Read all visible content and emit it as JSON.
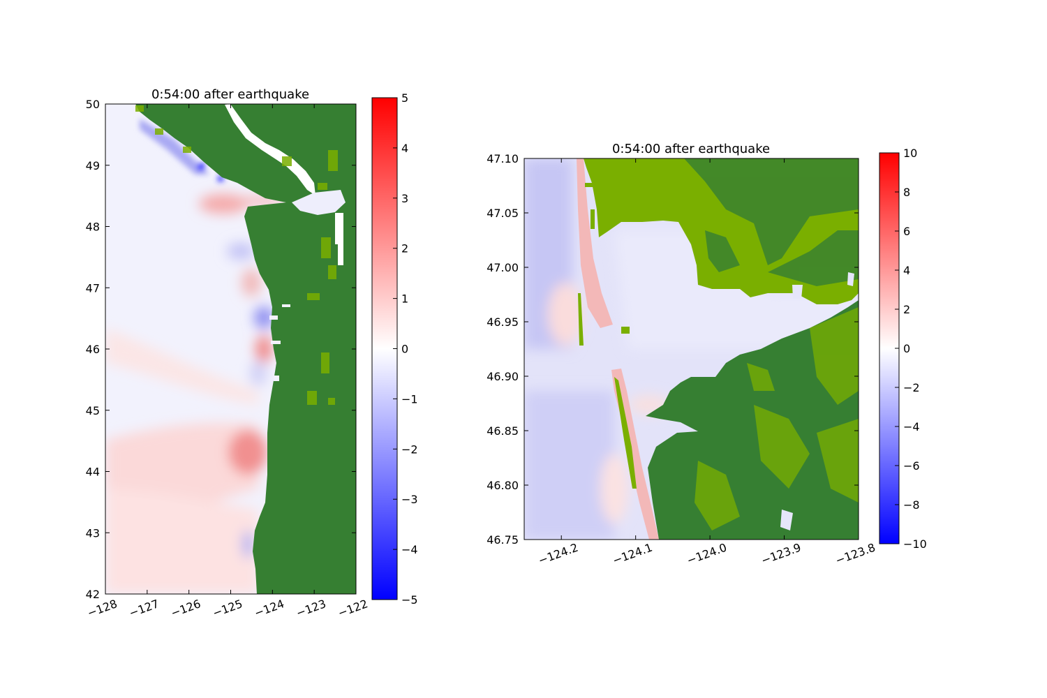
{
  "chart_data": [
    {
      "type": "heatmap",
      "title": "0:54:00 after earthquake",
      "x_ticks": [
        "−128",
        "−127",
        "−126",
        "−125",
        "−124",
        "−123",
        "−122"
      ],
      "x_tick_values": [
        -128,
        -127,
        -126,
        -125,
        -124,
        -123,
        -122
      ],
      "y_ticks": [
        "42",
        "43",
        "44",
        "45",
        "46",
        "47",
        "48",
        "49",
        "50"
      ],
      "y_tick_values": [
        42,
        43,
        44,
        45,
        46,
        47,
        48,
        49,
        50
      ],
      "xlim": [
        -128,
        -122
      ],
      "ylim": [
        42,
        50
      ],
      "colorbar": {
        "range": [
          -5,
          5
        ],
        "ticks": [
          "5",
          "4",
          "3",
          "2",
          "1",
          "0",
          "−1",
          "−2",
          "−3",
          "−4",
          "−5"
        ],
        "colors": [
          "#0000ff",
          "#ffffff",
          "#ff0000"
        ]
      },
      "land_color": "#367f32",
      "coast_lon": [
        [
          50.0,
          -125.1
        ],
        [
          49.5,
          -125.3
        ],
        [
          49.1,
          -124.7
        ],
        [
          48.4,
          -124.4
        ],
        [
          47.8,
          -124.35
        ],
        [
          47.3,
          -124.25
        ],
        [
          46.9,
          -124.1
        ],
        [
          46.3,
          -124.05
        ],
        [
          45.5,
          -124.0
        ],
        [
          44.8,
          -124.05
        ],
        [
          44.0,
          -124.05
        ],
        [
          43.3,
          -124.2
        ],
        [
          42.8,
          -124.4
        ],
        [
          42.0,
          -124.3
        ]
      ],
      "features": [
        {
          "lat": 44.3,
          "lon": -124.6,
          "value": 2.0
        },
        {
          "lat": 48.3,
          "lon": -125.6,
          "value": 1.6
        },
        {
          "lat": 48.95,
          "lon": -124.8,
          "value": -3.8
        },
        {
          "lat": 47.6,
          "lon": -124.7,
          "value": -1.5
        },
        {
          "lat": 46.5,
          "lon": -124.3,
          "value": -2.2
        },
        {
          "lat": 45.9,
          "lon": -124.2,
          "value": 1.5
        },
        {
          "lat": 47.2,
          "lon": -124.6,
          "value": 1.2
        },
        {
          "lat": 43.6,
          "lon": -127.0,
          "value": 0.6
        },
        {
          "lat": 45.2,
          "lon": -125.5,
          "value": 0.5
        },
        {
          "lat": 42.8,
          "lon": -124.5,
          "value": -1.3
        }
      ]
    },
    {
      "type": "heatmap",
      "title": "0:54:00 after earthquake",
      "x_ticks": [
        "−124.2",
        "−124.1",
        "−124.0",
        "−123.9",
        "−123.8"
      ],
      "x_tick_values": [
        -124.2,
        -124.1,
        -124.0,
        -123.9,
        -123.8
      ],
      "y_ticks": [
        "46.75",
        "46.80",
        "46.85",
        "46.90",
        "46.95",
        "47.00",
        "47.05",
        "47.10"
      ],
      "y_tick_values": [
        46.75,
        46.8,
        46.85,
        46.9,
        46.95,
        47.0,
        47.05,
        47.1
      ],
      "xlim": [
        -124.25,
        -123.8
      ],
      "ylim": [
        46.75,
        47.1
      ],
      "colorbar": {
        "range": [
          -10,
          10
        ],
        "ticks": [
          "10",
          "8",
          "6",
          "4",
          "2",
          "0",
          "−2",
          "−4",
          "−6",
          "−8",
          "−10"
        ],
        "colors": [
          "#0000ff",
          "#ffffff",
          "#ff0000"
        ]
      },
      "land_colors": [
        "#367f32",
        "#7aaf00"
      ],
      "water_value_range": [
        -4,
        2
      ]
    }
  ]
}
